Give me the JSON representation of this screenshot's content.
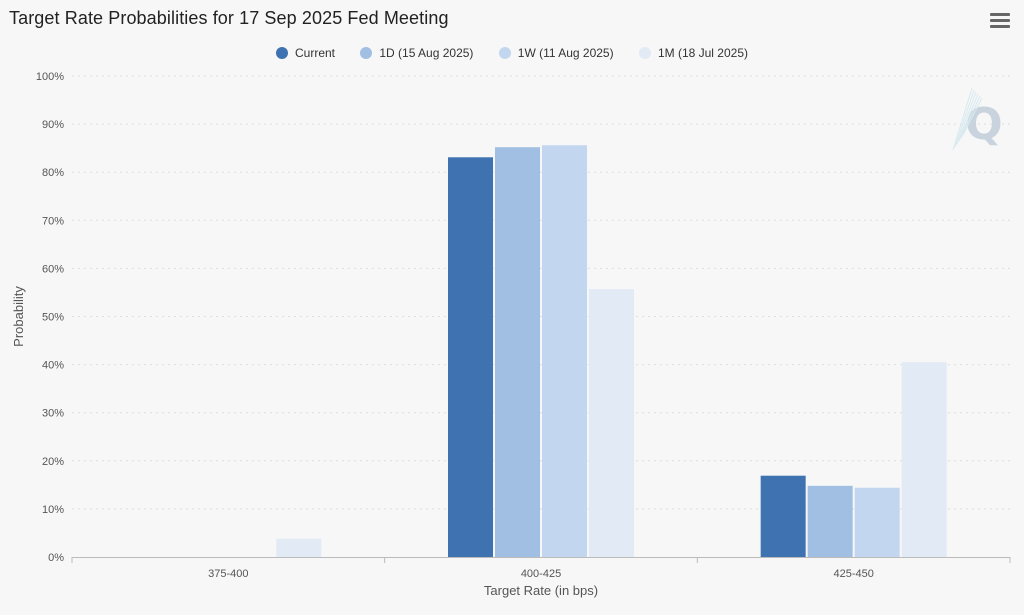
{
  "colors": {
    "background": "#f7f7f7",
    "gridline": "#dddddd",
    "series": [
      "#3f72b1",
      "#a0bfe3",
      "#c3d6ef",
      "#e2eaf6"
    ],
    "watermark": "#c8d3dd"
  },
  "toolbar": {
    "menu_icon": "hamburger-menu-icon"
  },
  "watermark": {
    "letter": "Q"
  },
  "chart_data": {
    "type": "bar",
    "title": "Target Rate Probabilities for 17 Sep 2025 Fed Meeting",
    "xlabel": "Target Rate (in bps)",
    "ylabel": "Probability",
    "categories": [
      "375-400",
      "400-425",
      "425-450"
    ],
    "ylim": [
      0,
      100
    ],
    "yticks": [
      "0%",
      "10%",
      "20%",
      "30%",
      "40%",
      "50%",
      "60%",
      "70%",
      "80%",
      "90%",
      "100%"
    ],
    "grid": true,
    "legend_position": "top-center",
    "series": [
      {
        "name": "Current",
        "values": [
          0,
          83.1,
          16.9
        ]
      },
      {
        "name": "1D (15 Aug 2025)",
        "values": [
          0,
          85.2,
          14.8
        ]
      },
      {
        "name": "1W (11 Aug 2025)",
        "values": [
          0,
          85.6,
          14.4
        ]
      },
      {
        "name": "1M (18 Jul 2025)",
        "values": [
          3.8,
          55.7,
          40.5
        ]
      }
    ]
  }
}
